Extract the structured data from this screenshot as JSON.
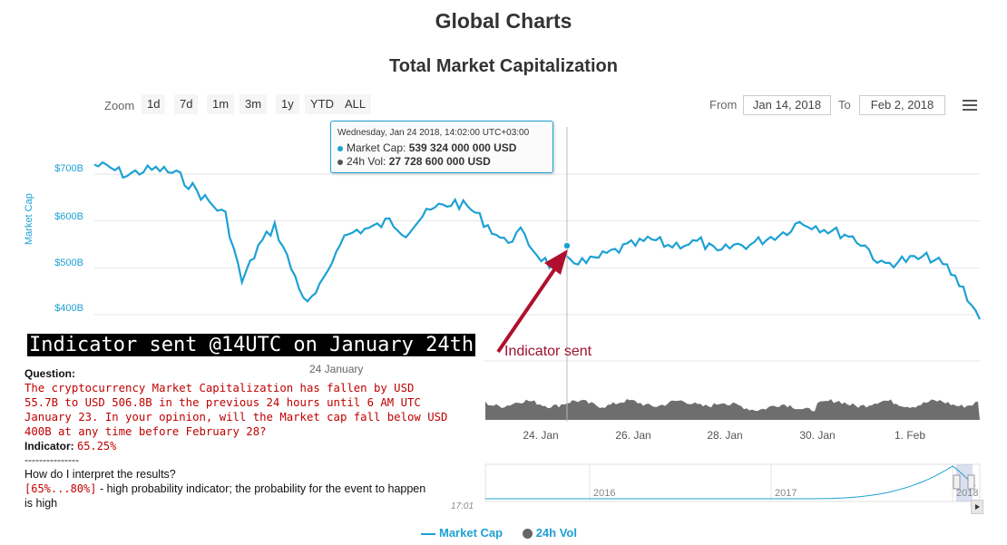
{
  "page_title": "Global Charts",
  "chart_title": "Total Market Capitalization",
  "zoom": {
    "label": "Zoom",
    "buttons": [
      "1d",
      "7d",
      "1m",
      "3m",
      "1y",
      "YTD",
      "ALL"
    ]
  },
  "range": {
    "from_label": "From",
    "from_value": "Jan 14, 2018",
    "to_label": "To",
    "to_value": "Feb 2, 2018"
  },
  "tooltip": {
    "date": "Wednesday, Jan 24 2018, 14:02:00 UTC+03:00",
    "row1_label": "Market Cap:",
    "row1_value": "539 324 000 000 USD",
    "row2_label": "24h Vol:",
    "row2_value": "27 728 600 000 USD"
  },
  "annotation": {
    "banner": "Indicator sent @14UTC on January 24th",
    "arrow_label": "Indicator sent"
  },
  "chat": {
    "date_header": "24 January",
    "question_label": "Question:",
    "question_lines": [
      "The cryptocurrency Market Capitalization has fallen by USD",
      "55.7B to USD 506.8B in the previous 24 hours until 6 AM UTC",
      "January 23. In your opinion, will the Market cap fall below USD",
      "400B at any time before February 28?"
    ],
    "indicator_label": "Indicator:",
    "indicator_value": "65.25%",
    "divider": "---------------",
    "interpret_question": "How do I interpret the results?",
    "range_code": "[65%...80%]",
    "range_desc": " - high probability indicator; the probability  for the event to happen",
    "range_desc_2": "is high",
    "timestamp": "17:01"
  },
  "legend": {
    "market_cap": "Market Cap",
    "vol": "24h Vol"
  },
  "colors": {
    "market_cap": "#1da1d4",
    "volume": "#6e6e6e",
    "arrow": "#b0102e",
    "question_text": "#c00000"
  },
  "chart_data": {
    "type": "line",
    "title": "Total Market Capitalization",
    "ylabel": "Market Cap",
    "y_ticks": [
      "$400B",
      "$500B",
      "$600B",
      "$700B"
    ],
    "x_ticks": [
      "24. Jan",
      "26. Jan",
      "28. Jan",
      "30. Jan",
      "1. Feb"
    ],
    "ylim": [
      380,
      740
    ],
    "series": [
      {
        "name": "Market Cap",
        "unit": "B USD",
        "x": [
          "2018-01-14",
          "2018-01-14",
          "2018-01-15",
          "2018-01-15",
          "2018-01-15",
          "2018-01-16",
          "2018-01-16",
          "2018-01-16",
          "2018-01-16",
          "2018-01-17",
          "2018-01-17",
          "2018-01-17",
          "2018-01-17",
          "2018-01-17",
          "2018-01-17",
          "2018-01-18",
          "2018-01-18",
          "2018-01-18",
          "2018-01-19",
          "2018-01-19",
          "2018-01-20",
          "2018-01-20",
          "2018-01-20",
          "2018-01-21",
          "2018-01-21",
          "2018-01-21",
          "2018-01-22",
          "2018-01-22",
          "2018-01-22",
          "2018-01-23",
          "2018-01-23",
          "2018-01-23",
          "2018-01-24",
          "2018-01-24",
          "2018-01-24",
          "2018-01-25",
          "2018-01-25",
          "2018-01-26",
          "2018-01-26",
          "2018-01-26",
          "2018-01-27",
          "2018-01-27",
          "2018-01-28",
          "2018-01-28",
          "2018-01-29",
          "2018-01-29",
          "2018-01-30",
          "2018-01-30",
          "2018-01-30",
          "2018-01-31",
          "2018-01-31",
          "2018-02-01",
          "2018-02-01",
          "2018-02-02",
          "2018-02-02"
        ],
        "values": [
          720,
          712,
          698,
          708,
          710,
          700,
          672,
          640,
          612,
          470,
          545,
          590,
          500,
          420,
          470,
          560,
          580,
          585,
          600,
          575,
          610,
          630,
          640,
          625,
          590,
          555,
          575,
          530,
          500,
          520,
          510,
          525,
          539,
          550,
          560,
          548,
          552,
          555,
          530,
          548,
          550,
          563,
          575,
          598,
          590,
          578,
          570,
          548,
          505,
          515,
          518,
          522,
          500,
          455,
          390
        ]
      },
      {
        "name": "24h Vol",
        "unit": "B USD",
        "note": "volume series shown as gray area below price chart",
        "values": []
      }
    ],
    "grid": true,
    "legend_position": "bottom-center"
  }
}
